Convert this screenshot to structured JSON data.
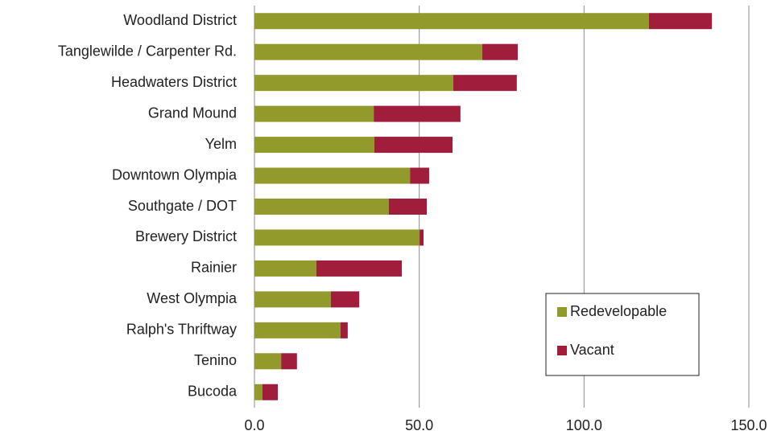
{
  "chart_data": {
    "type": "stacked_bar_horizontal",
    "categories": [
      "Woodland District",
      "Tanglewilde / Carpenter Rd.",
      "Headwaters District",
      "Grand Mound",
      "Yelm",
      "Downtown Olympia",
      "Southgate / DOT",
      "Brewery District",
      "Rainier",
      "West Olympia",
      "Ralph's Thriftway",
      "Tenino",
      "Bucoda"
    ],
    "series": [
      {
        "name": "Redevelopable",
        "color": "#939a2c",
        "values": [
          119.7,
          69.1,
          60.3,
          36.2,
          36.4,
          47.2,
          40.8,
          50.1,
          18.8,
          23.2,
          26.1,
          8.1,
          2.4
        ]
      },
      {
        "name": "Vacant",
        "color": "#a01d3c",
        "values": [
          19.1,
          10.8,
          19.3,
          26.3,
          23.7,
          5.8,
          11.5,
          1.2,
          25.9,
          8.6,
          2.2,
          4.8,
          4.7
        ]
      }
    ],
    "xlim": [
      0,
      150
    ],
    "xticks": [
      {
        "value": 0,
        "label": "0.0"
      },
      {
        "value": 50,
        "label": "50.0"
      },
      {
        "value": 100,
        "label": "100.0"
      },
      {
        "value": 150,
        "label": "150.0"
      }
    ],
    "grid": true,
    "legend": "lower right"
  }
}
